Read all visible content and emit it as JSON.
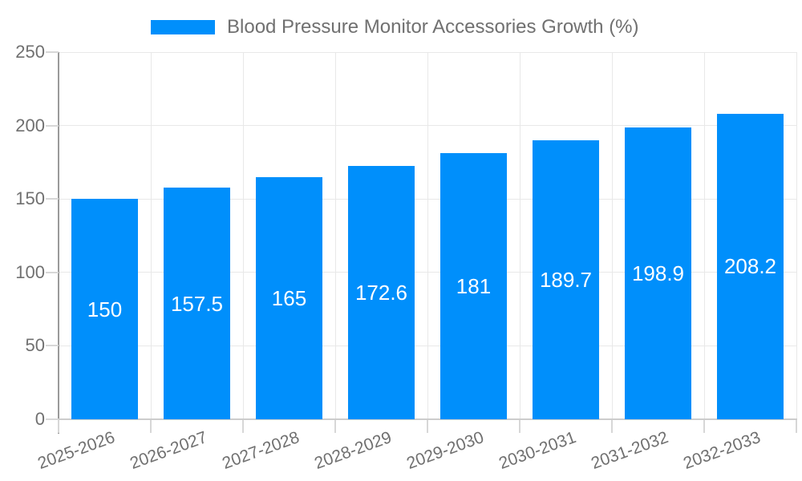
{
  "legend": {
    "label": "Blood Pressure Monitor Accessories Growth (%)"
  },
  "colors": {
    "bar": "#008FFB",
    "axis_text": "#707070",
    "bar_label_text": "#ffffff",
    "grid": "#e8e8e8",
    "y_axis_line": "#9a9a9a",
    "x_axis_line": "#cccccc",
    "tick": "#d7d7d7",
    "background": "#ffffff"
  },
  "chart_data": {
    "type": "bar",
    "title": "Blood Pressure Monitor Accessories Growth (%)",
    "categories": [
      "2025-2026",
      "2026-2027",
      "2027-2028",
      "2028-2029",
      "2029-2030",
      "2030-2031",
      "2031-2032",
      "2032-2033"
    ],
    "values": [
      150,
      157.5,
      165,
      172.6,
      181,
      189.7,
      198.9,
      208.2
    ],
    "value_labels": [
      "150",
      "157.5",
      "165",
      "172.6",
      "181",
      "189.7",
      "198.9",
      "208.2"
    ],
    "xlabel": "",
    "ylabel": "",
    "ylim": [
      0,
      250
    ],
    "yticks": [
      0,
      50,
      100,
      150,
      200,
      250
    ],
    "grid": "on",
    "legend_position": "top",
    "bar_label_position": "center"
  }
}
